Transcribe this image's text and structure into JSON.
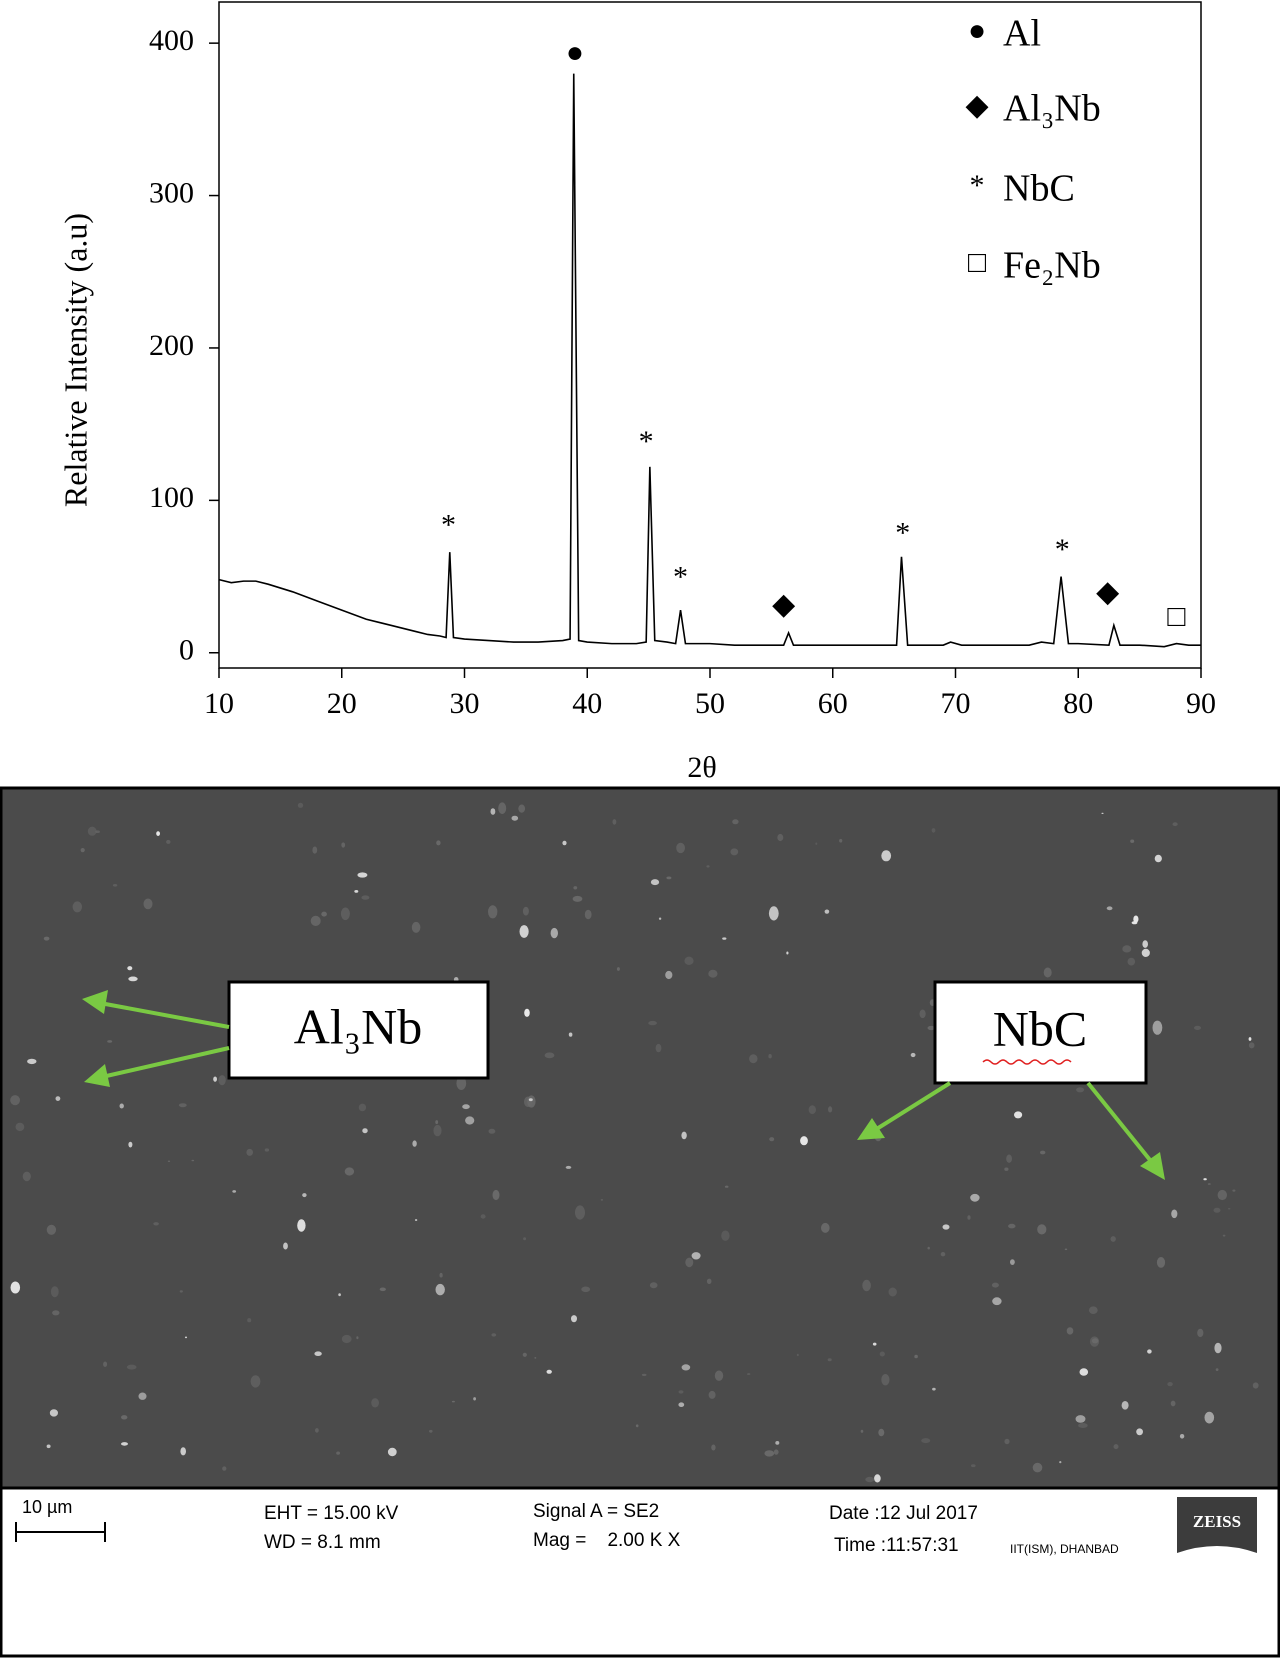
{
  "chart_data": {
    "type": "line",
    "x_label": "2θ",
    "y_label": "Relative Intensity (a.u)",
    "xlim": [
      10,
      90
    ],
    "ylim": [
      -10,
      427
    ],
    "xticks": [
      10,
      20,
      30,
      40,
      50,
      60,
      70,
      80,
      90
    ],
    "yticks": [
      0,
      100,
      200,
      300,
      400
    ],
    "color": "#000000",
    "x": [
      10,
      11,
      12,
      13,
      14,
      16,
      18,
      20,
      22,
      24,
      26,
      27,
      28,
      28.5,
      28.8,
      29.1,
      30,
      32,
      34,
      36,
      38,
      38.6,
      38.9,
      39.3,
      40,
      42,
      44,
      44.8,
      45.1,
      45.5,
      46.5,
      47.2,
      47.6,
      48,
      50,
      52,
      54,
      56,
      56.4,
      56.8,
      58,
      60,
      62,
      64,
      65.2,
      65.6,
      66.1,
      68,
      69,
      69.6,
      70.5,
      72,
      74,
      76,
      77,
      78,
      78.6,
      79.2,
      80,
      82.5,
      82.9,
      83.4,
      85,
      87,
      88,
      89,
      90
    ],
    "values": [
      48,
      46,
      47,
      47,
      45,
      40,
      34,
      28,
      22,
      18,
      14,
      12,
      11,
      10,
      66,
      10,
      9,
      8,
      7,
      7,
      8,
      9,
      380,
      8,
      7,
      6,
      6,
      7,
      122,
      8,
      7,
      6,
      28,
      6,
      6,
      5,
      5,
      5,
      13,
      5,
      5,
      5,
      5,
      5,
      5,
      63,
      5,
      5,
      5,
      7,
      5,
      5,
      5,
      5,
      7,
      6,
      50,
      6,
      6,
      5,
      18,
      5,
      5,
      4,
      6,
      5,
      5
    ],
    "annotations": [
      {
        "text": "*",
        "x": 28.7,
        "y": 82
      },
      {
        "text": "●",
        "x": 39,
        "y": 392
      },
      {
        "text": "*",
        "x": 44.8,
        "y": 137
      },
      {
        "text": "*",
        "x": 47.6,
        "y": 48
      },
      {
        "text": "◆",
        "x": 56,
        "y": 30
      },
      {
        "text": "*",
        "x": 65.7,
        "y": 77
      },
      {
        "text": "*",
        "x": 78.7,
        "y": 66
      },
      {
        "text": "◆",
        "x": 82.4,
        "y": 38
      },
      {
        "text": "□",
        "x": 88,
        "y": 22
      }
    ],
    "legend": [
      {
        "symbol": "●",
        "label": "Al"
      },
      {
        "symbol": "◆",
        "label": "Al₃Nb"
      },
      {
        "symbol": "*",
        "label": "NbC"
      },
      {
        "symbol": "□",
        "label": "Fe₂Nb"
      }
    ]
  },
  "sem_image": {
    "labels": [
      "Al₃Nb",
      "NbC"
    ],
    "scale_bar": "10 µm",
    "eht": "EHT = 15.00 kV",
    "wd": "WD =  8.1 mm",
    "signal": "Signal A = SE2",
    "mag": "Mag =    2.00 K X",
    "date": "Date :12 Jul 2017",
    "time": "Time :11:57:31",
    "institution": "IIT(ISM), DHANBAD",
    "logo": "ZEISS"
  }
}
